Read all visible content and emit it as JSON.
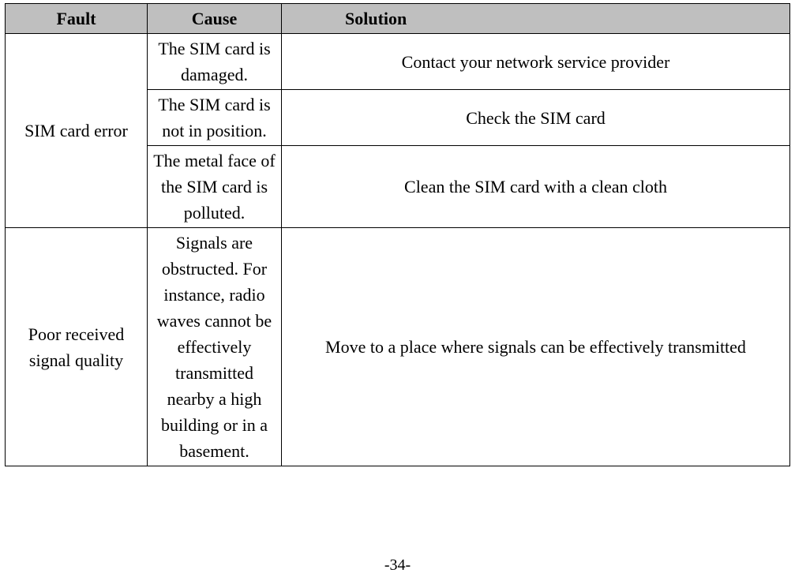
{
  "table": {
    "type": "table",
    "columns": [
      "Fault",
      "Cause",
      "Solution"
    ],
    "header_bg": "#bfbfbf",
    "border_color": "#000000",
    "font_family": "Times New Roman",
    "font_size_pt": 16,
    "rows": [
      {
        "fault": "SIM card error",
        "fault_rowspan": 3,
        "cause": "The SIM card is damaged.",
        "solution": "Contact your network service provider"
      },
      {
        "cause": "The SIM card is not in position.",
        "solution": "Check the SIM card"
      },
      {
        "cause": "The metal face of the SIM card is polluted.",
        "solution": "Clean the SIM card with a clean cloth"
      },
      {
        "fault": "Poor received signal quality",
        "fault_rowspan": 1,
        "cause": "Signals are obstructed. For instance, radio waves cannot be effectively transmitted nearby a high building or in a basement.",
        "solution": "Move to a place where signals can be effectively transmitted"
      }
    ]
  },
  "page_number": "-34-"
}
